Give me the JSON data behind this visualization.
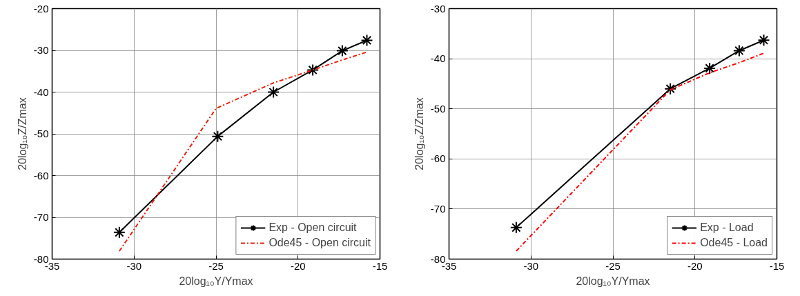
{
  "chart_data": [
    {
      "type": "line",
      "xlabel": "20log₁₀Y/Ymax",
      "ylabel": "20log₁₀Z/Zmax",
      "xlim": [
        -35,
        -15
      ],
      "ylim": [
        -80,
        -20
      ],
      "xticks": [
        -35,
        -30,
        -25,
        -20,
        -15
      ],
      "yticks": [
        -80,
        -70,
        -60,
        -50,
        -40,
        -30,
        -20
      ],
      "grid": true,
      "legend": "bottom right",
      "series": [
        {
          "name": "Exp - Open circuit",
          "color": "#000000",
          "marker": "cross",
          "line_style": "solid",
          "x": [
            -30.9,
            -24.9,
            -21.5,
            -19.1,
            -17.3,
            -15.8
          ],
          "values": [
            -73.6,
            -50.6,
            -40.0,
            -34.7,
            -30.1,
            -27.6
          ]
        },
        {
          "name": "Ode45 - Open circuit",
          "color": "#e8200a",
          "marker": "none",
          "line_style": "dashed",
          "x": [
            -30.9,
            -25.0,
            -21.5,
            -19.1,
            -17.3,
            -15.8
          ],
          "values": [
            -78.1,
            -43.9,
            -37.8,
            -34.7,
            -32.3,
            -30.4
          ]
        }
      ]
    },
    {
      "type": "line",
      "xlabel": "20log₁₀Y/Ymax",
      "ylabel": "20log₁₀Z/Zmax",
      "xlim": [
        -35,
        -15
      ],
      "ylim": [
        -80,
        -30
      ],
      "xticks": [
        -35,
        -30,
        -25,
        -20,
        -15
      ],
      "yticks": [
        -80,
        -70,
        -60,
        -50,
        -40,
        -30
      ],
      "grid": true,
      "legend": "bottom right",
      "series": [
        {
          "name": "Exp - Load",
          "color": "#000000",
          "marker": "cross",
          "line_style": "solid",
          "x": [
            -30.9,
            -21.5,
            -19.1,
            -17.3,
            -15.8
          ],
          "values": [
            -73.7,
            -46.0,
            -41.9,
            -38.4,
            -36.3
          ]
        },
        {
          "name": "Ode45 - Load",
          "color": "#ff0000",
          "marker": "none",
          "line_style": "dashed",
          "x": [
            -30.9,
            -21.5,
            -19.1,
            -17.3,
            -15.8
          ],
          "values": [
            -78.4,
            -46.2,
            -42.8,
            -40.8,
            -38.9
          ]
        }
      ]
    }
  ]
}
